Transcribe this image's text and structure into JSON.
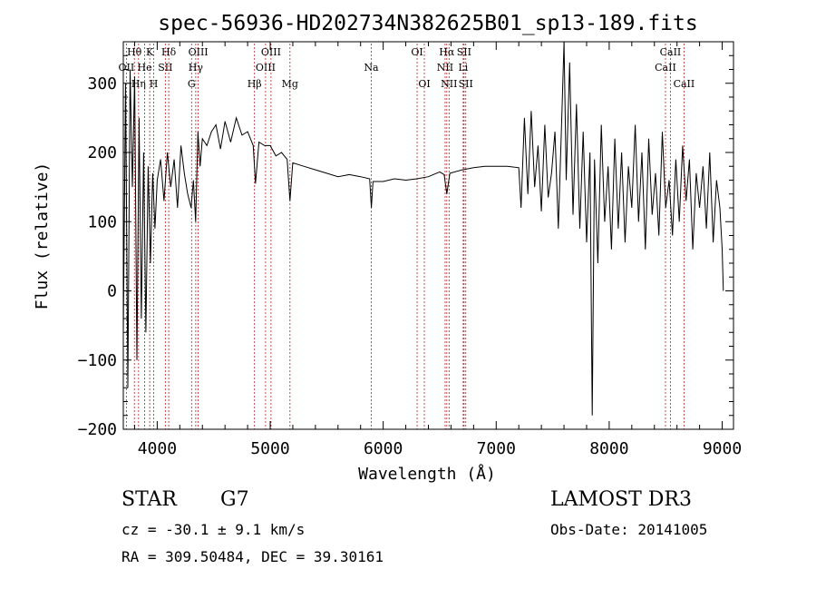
{
  "chart_data": {
    "type": "line",
    "title": "spec-56936-HD202734N382625B01_sp13-189.fits",
    "xlabel": "Wavelength (Å)",
    "ylabel": "Flux (relative)",
    "xlim": [
      3700,
      9100
    ],
    "ylim": [
      -200,
      360
    ],
    "xticks": [
      "4000",
      "5000",
      "6000",
      "7000",
      "8000",
      "9000"
    ],
    "yticks": [
      "-200",
      "-100",
      "0",
      "100",
      "200",
      "300"
    ],
    "grid": false,
    "legend": "none",
    "line_color": "#000000",
    "marker_color": "#b22222",
    "spectral_lines": [
      {
        "label": "OII",
        "x": 3727,
        "row": 1
      },
      {
        "label": "Hθ",
        "x": 3798,
        "row": 0
      },
      {
        "label": "Hη",
        "x": 3835,
        "row": 2
      },
      {
        "label": "He",
        "x": 3889,
        "row": 1
      },
      {
        "label": "K",
        "x": 3934,
        "row": 0
      },
      {
        "label": "H",
        "x": 3969,
        "row": 2
      },
      {
        "label": "SII",
        "x": 4072,
        "row": 1
      },
      {
        "label": "Hδ",
        "x": 4102,
        "row": 0
      },
      {
        "label": "G",
        "x": 4304,
        "row": 2
      },
      {
        "label": "Hγ",
        "x": 4341,
        "row": 1
      },
      {
        "label": "OIII",
        "x": 4363,
        "row": 0
      },
      {
        "label": "Hβ",
        "x": 4861,
        "row": 2
      },
      {
        "label": "OIII",
        "x": 4959,
        "row": 1
      },
      {
        "label": "OIII",
        "x": 5007,
        "row": 0
      },
      {
        "label": "Mg",
        "x": 5175,
        "row": 2
      },
      {
        "label": "Na",
        "x": 5894,
        "row": 1
      },
      {
        "label": "OI",
        "x": 6300,
        "row": 0
      },
      {
        "label": "OI",
        "x": 6364,
        "row": 2
      },
      {
        "label": "NII",
        "x": 6548,
        "row": 1
      },
      {
        "label": "Hα",
        "x": 6563,
        "row": 0
      },
      {
        "label": "NII",
        "x": 6583,
        "row": 2
      },
      {
        "label": "Li",
        "x": 6708,
        "row": 1
      },
      {
        "label": "SII",
        "x": 6716,
        "row": 0
      },
      {
        "label": "SII",
        "x": 6731,
        "row": 2
      },
      {
        "label": "CaII",
        "x": 8498,
        "row": 1
      },
      {
        "label": "CaII",
        "x": 8542,
        "row": 0
      },
      {
        "label": "CaII",
        "x": 8662,
        "row": 2
      }
    ],
    "spectrum": {
      "x": [
        3700,
        3720,
        3740,
        3760,
        3780,
        3800,
        3820,
        3840,
        3860,
        3880,
        3900,
        3920,
        3940,
        3960,
        3980,
        4000,
        4030,
        4060,
        4090,
        4120,
        4150,
        4180,
        4210,
        4240,
        4270,
        4300,
        4320,
        4340,
        4360,
        4380,
        4400,
        4440,
        4480,
        4520,
        4560,
        4600,
        4650,
        4700,
        4750,
        4800,
        4850,
        4870,
        4900,
        4950,
        5000,
        5050,
        5100,
        5150,
        5175,
        5200,
        5300,
        5400,
        5500,
        5600,
        5700,
        5800,
        5880,
        5895,
        5910,
        6000,
        6100,
        6200,
        6300,
        6400,
        6500,
        6540,
        6563,
        6590,
        6700,
        6800,
        6900,
        7000,
        7100,
        7200,
        7220,
        7250,
        7280,
        7310,
        7340,
        7370,
        7400,
        7430,
        7460,
        7490,
        7520,
        7550,
        7580,
        7600,
        7620,
        7650,
        7680,
        7710,
        7740,
        7770,
        7800,
        7830,
        7850,
        7870,
        7900,
        7930,
        7960,
        7990,
        8020,
        8050,
        8080,
        8110,
        8140,
        8170,
        8200,
        8230,
        8260,
        8290,
        8320,
        8350,
        8380,
        8410,
        8440,
        8470,
        8500,
        8530,
        8560,
        8590,
        8620,
        8650,
        8680,
        8710,
        8740,
        8770,
        8800,
        8830,
        8860,
        8890,
        8920,
        8950,
        8980,
        9000,
        9010
      ],
      "y": [
        -60,
        300,
        -140,
        320,
        150,
        310,
        -100,
        250,
        -40,
        200,
        -60,
        180,
        40,
        170,
        90,
        160,
        190,
        130,
        200,
        150,
        190,
        120,
        210,
        170,
        140,
        120,
        160,
        100,
        230,
        180,
        220,
        210,
        230,
        240,
        205,
        245,
        215,
        250,
        225,
        230,
        210,
        155,
        215,
        210,
        210,
        195,
        200,
        190,
        130,
        185,
        180,
        175,
        170,
        165,
        168,
        165,
        162,
        120,
        158,
        158,
        162,
        160,
        162,
        165,
        172,
        168,
        140,
        170,
        175,
        178,
        180,
        180,
        180,
        178,
        120,
        250,
        140,
        260,
        150,
        210,
        115,
        240,
        135,
        170,
        230,
        90,
        250,
        360,
        160,
        330,
        110,
        270,
        90,
        230,
        70,
        200,
        -180,
        190,
        40,
        240,
        100,
        180,
        60,
        220,
        90,
        200,
        70,
        180,
        120,
        240,
        100,
        200,
        60,
        220,
        110,
        170,
        80,
        230,
        120,
        160,
        80,
        190,
        100,
        210,
        130,
        190,
        60,
        170,
        120,
        180,
        90,
        200,
        70,
        160,
        120,
        60,
        0
      ]
    }
  },
  "info": {
    "object_type": "STAR",
    "subclass": "G7",
    "survey": "LAMOST DR3",
    "velocity": "cz = -30.1 ± 9.1 km/s",
    "obs_date": "Obs-Date: 20141005",
    "coords": "RA = 309.50484, DEC =  39.30161"
  }
}
